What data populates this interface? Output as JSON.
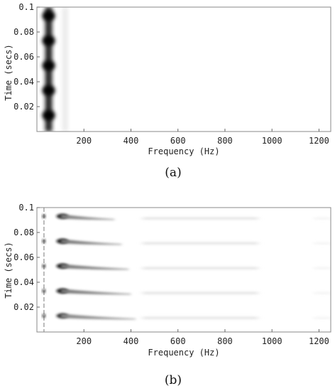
{
  "chart_data": [
    {
      "type": "heatmap",
      "panel_label": "(a)",
      "xlabel": "Frequency (Hz)",
      "ylabel": "Time (secs)",
      "xticks": [
        200,
        400,
        600,
        800,
        1000,
        1200
      ],
      "xtick_labels": [
        "200",
        "400",
        "600",
        "800",
        "1000",
        "1200"
      ],
      "yticks": [
        0.02,
        0.04,
        0.06,
        0.08,
        0.1
      ],
      "ytick_labels": [
        "0.02",
        "0.04",
        "0.06",
        "0.08",
        "0.1"
      ],
      "xlim": [
        0,
        1250
      ],
      "ylim": [
        0,
        0.1
      ],
      "colormap": "grayscale-inverted",
      "features": [
        {
          "kind": "vertical_band",
          "freq_hz": 50,
          "width_hz": 30,
          "t_start": 0.0,
          "t_end": 0.1,
          "intensity": 1.0
        },
        {
          "kind": "pulse",
          "freq_hz": 50,
          "times": [
            0.013,
            0.033,
            0.053,
            0.073,
            0.093
          ],
          "intensity": 1.0
        },
        {
          "kind": "faint_band",
          "freq_hz": 120,
          "t_start": 0.0,
          "t_end": 0.1,
          "intensity": 0.08
        }
      ]
    },
    {
      "type": "heatmap",
      "panel_label": "(b)",
      "xlabel": "Frequency (Hz)",
      "ylabel": "Time (secs)",
      "xticks": [
        200,
        400,
        600,
        800,
        1000,
        1200
      ],
      "xtick_labels": [
        "200",
        "400",
        "600",
        "800",
        "1000",
        "1200"
      ],
      "yticks": [
        0.02,
        0.04,
        0.06,
        0.08,
        0.1
      ],
      "ytick_labels": [
        "0.02",
        "0.04",
        "0.06",
        "0.08",
        "0.1"
      ],
      "xlim": [
        0,
        1250
      ],
      "ylim": [
        0,
        0.1
      ],
      "colormap": "grayscale-inverted",
      "features": [
        {
          "kind": "vertical_line",
          "freq_hz": 30,
          "t_start": 0.0,
          "t_end": 0.1,
          "intensity": 0.35
        },
        {
          "kind": "chirp",
          "time": 0.093,
          "f_start": 90,
          "f_end": 330,
          "intensity": 0.9
        },
        {
          "kind": "chirp",
          "time": 0.073,
          "f_start": 90,
          "f_end": 360,
          "intensity": 0.95
        },
        {
          "kind": "chirp",
          "time": 0.053,
          "f_start": 90,
          "f_end": 390,
          "intensity": 0.95
        },
        {
          "kind": "chirp",
          "time": 0.033,
          "f_start": 90,
          "f_end": 400,
          "intensity": 0.95
        },
        {
          "kind": "chirp",
          "time": 0.013,
          "f_start": 90,
          "f_end": 420,
          "intensity": 0.85
        },
        {
          "kind": "faint_band_segment",
          "times": [
            0.013,
            0.033,
            0.053,
            0.073,
            0.093
          ],
          "f_start": 450,
          "f_end": 940,
          "intensity": 0.12
        }
      ]
    }
  ]
}
